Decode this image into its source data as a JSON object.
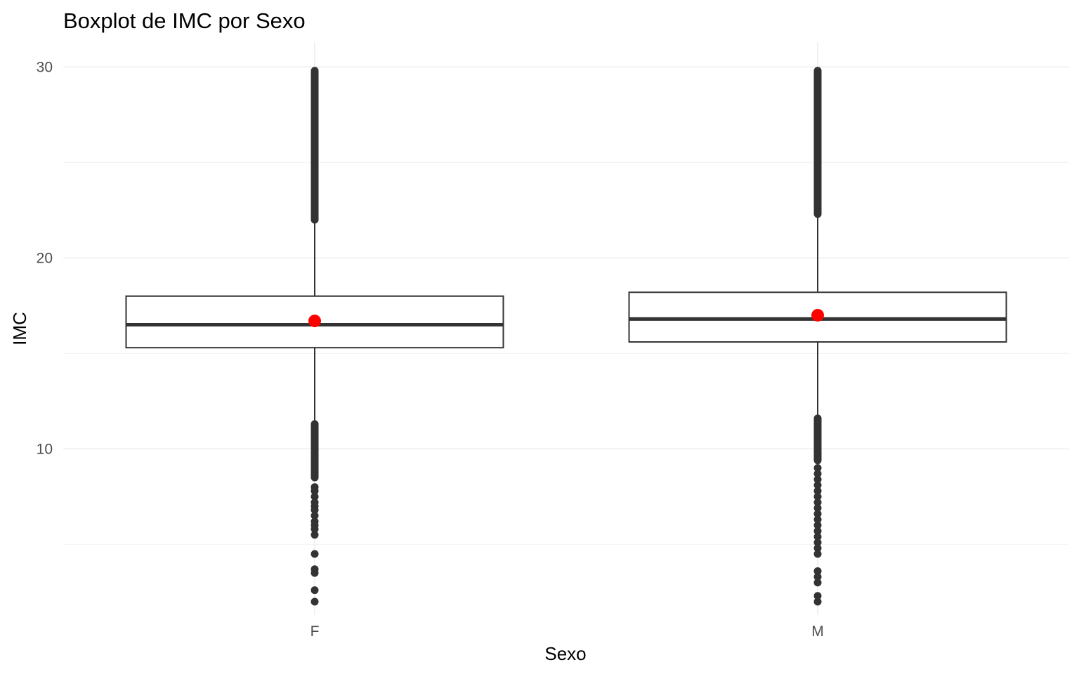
{
  "chart_data": {
    "type": "boxplot",
    "title": "Boxplot de IMC por Sexo",
    "xlabel": "Sexo",
    "ylabel": "IMC",
    "categories": [
      "F",
      "M"
    ],
    "y_ticks": [
      10,
      20,
      30
    ],
    "ylim": [
      1.3,
      31.3
    ],
    "grid": true,
    "legend": "none",
    "colors": {
      "box_outline": "#333333",
      "outlier": "#333333",
      "mean_point": "#ff0000",
      "grid": "#ebebeb"
    },
    "boxes": [
      {
        "category": "F",
        "q1": 15.3,
        "median": 16.5,
        "q3": 18.0,
        "whisker_low": 11.3,
        "whisker_high": 22.0,
        "mean": 16.7,
        "outliers_high_range": [
          22.0,
          29.8
        ],
        "outliers_low_range": [
          8.5,
          11.3
        ],
        "outliers_low_extra": [
          8.0,
          7.8,
          7.5,
          7.2,
          7.0,
          6.8,
          6.5,
          6.2,
          6.0,
          5.8,
          5.5,
          4.5,
          3.7,
          3.5,
          2.6,
          2.0
        ]
      },
      {
        "category": "M",
        "q1": 15.6,
        "median": 16.8,
        "q3": 18.2,
        "whisker_low": 11.6,
        "whisker_high": 22.3,
        "mean": 17.0,
        "outliers_high_range": [
          22.3,
          29.8
        ],
        "outliers_low_range": [
          9.4,
          11.6
        ],
        "outliers_low_extra": [
          9.0,
          8.7,
          8.4,
          8.1,
          7.8,
          7.5,
          7.2,
          6.9,
          6.6,
          6.3,
          6.0,
          5.7,
          5.4,
          5.1,
          4.8,
          4.5,
          3.6,
          3.3,
          3.0,
          2.3,
          2.0
        ]
      }
    ]
  }
}
